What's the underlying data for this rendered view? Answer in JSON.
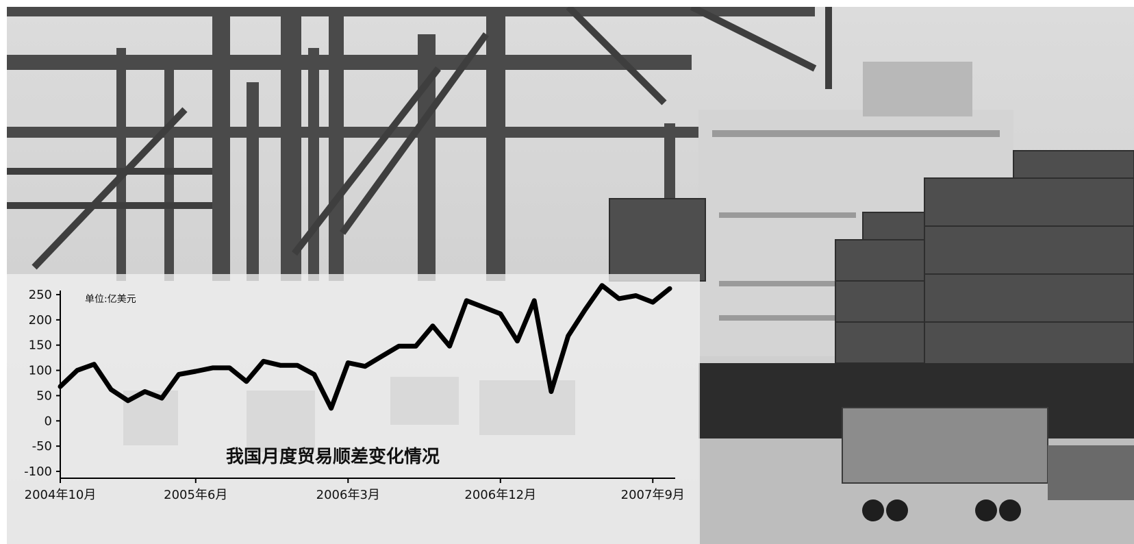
{
  "chart_data": {
    "type": "line",
    "title": "我国月度贸易顺差变化情况",
    "unit_label": "单位:亿美元",
    "ylim": [
      -100,
      250
    ],
    "y_ticks": [
      250,
      200,
      150,
      100,
      50,
      0,
      -50,
      -100
    ],
    "x_tick_labels": [
      "2004年10月",
      "2005年6月",
      "2006年3月",
      "2006年12月",
      "2007年9月"
    ],
    "grid": false,
    "series": [
      {
        "values": [
          68,
          100,
          112,
          62,
          40,
          58,
          45,
          92,
          98,
          105,
          105,
          78,
          118,
          110,
          110,
          92,
          25,
          115,
          108,
          128,
          148,
          148,
          188,
          148,
          238,
          225,
          212,
          158,
          238,
          58,
          168,
          220,
          268,
          242,
          248,
          235,
          262
        ]
      }
    ]
  },
  "background": {
    "sky_color": "#e2e2e2",
    "panel_color": "#eeeeee",
    "line_color": "#000000"
  }
}
